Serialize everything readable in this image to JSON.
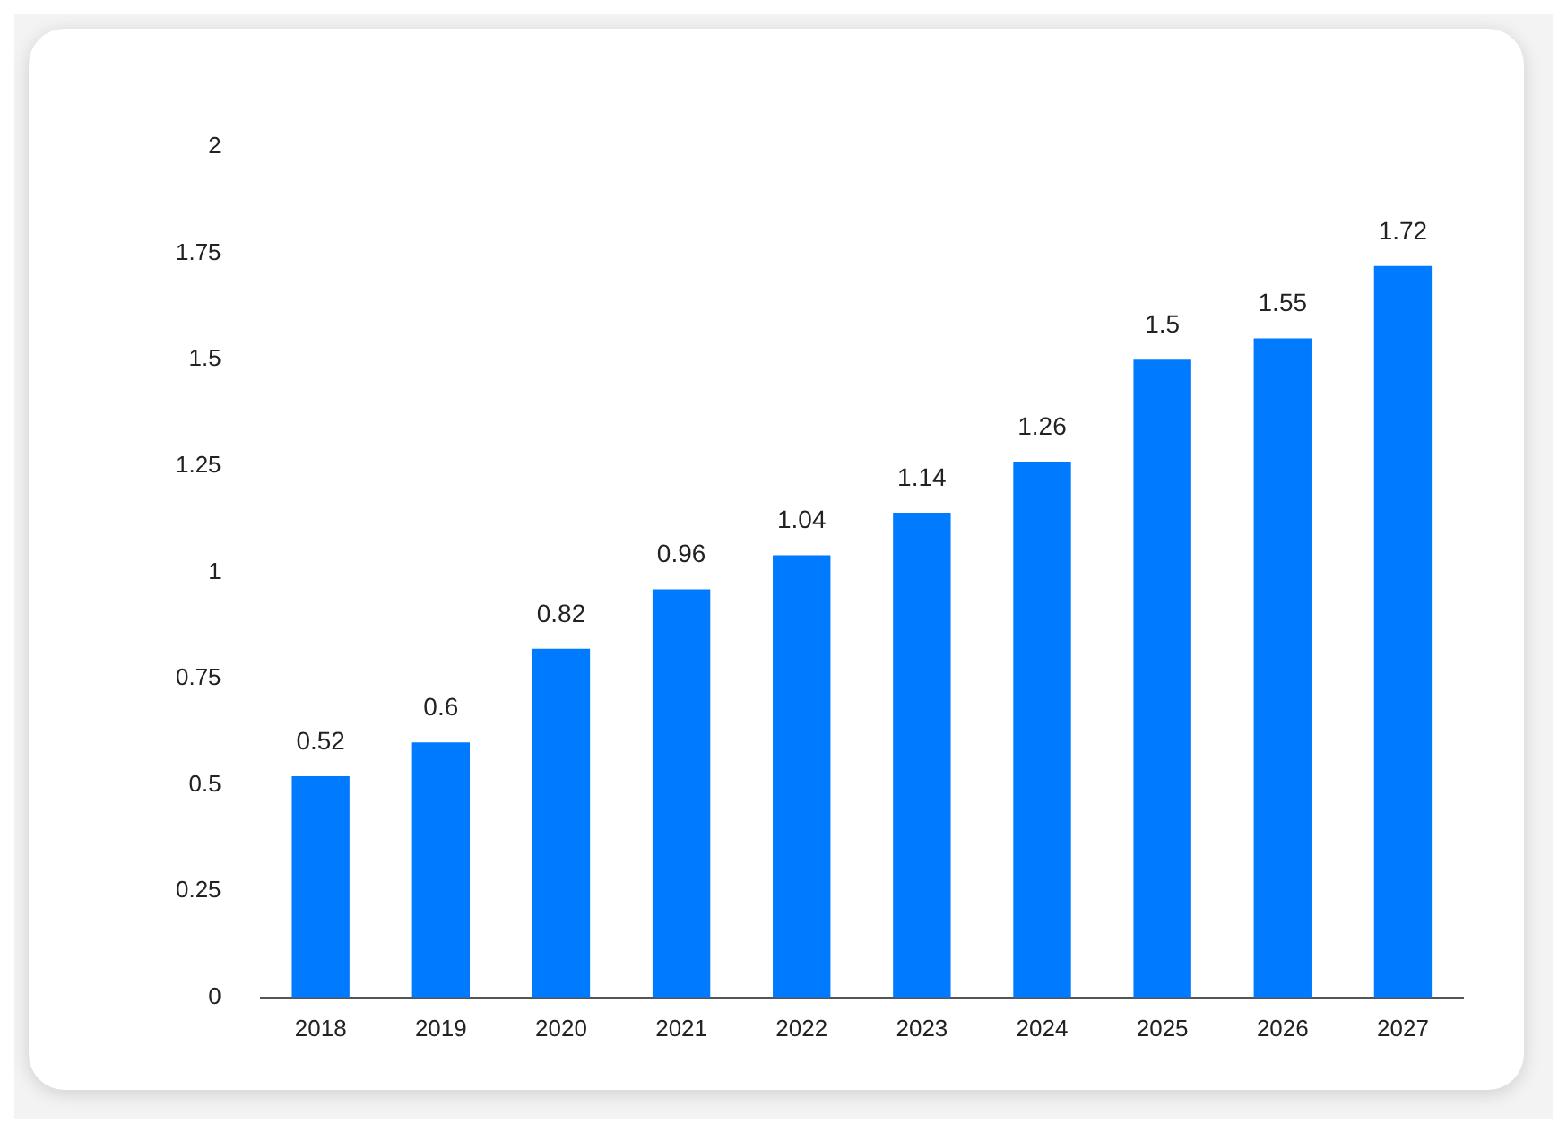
{
  "chart_data": {
    "type": "bar",
    "categories": [
      "2018",
      "2019",
      "2020",
      "2021",
      "2022",
      "2023",
      "2024",
      "2025",
      "2026",
      "2027"
    ],
    "values": [
      0.52,
      0.6,
      0.82,
      0.96,
      1.04,
      1.14,
      1.26,
      1.5,
      1.55,
      1.72
    ],
    "color": "#007bff",
    "ylim": [
      0,
      2
    ],
    "yticks": [
      0,
      0.25,
      0.5,
      0.75,
      1,
      1.25,
      1.5,
      1.75,
      2
    ],
    "grid": false,
    "legend": false,
    "data_labels": true
  }
}
